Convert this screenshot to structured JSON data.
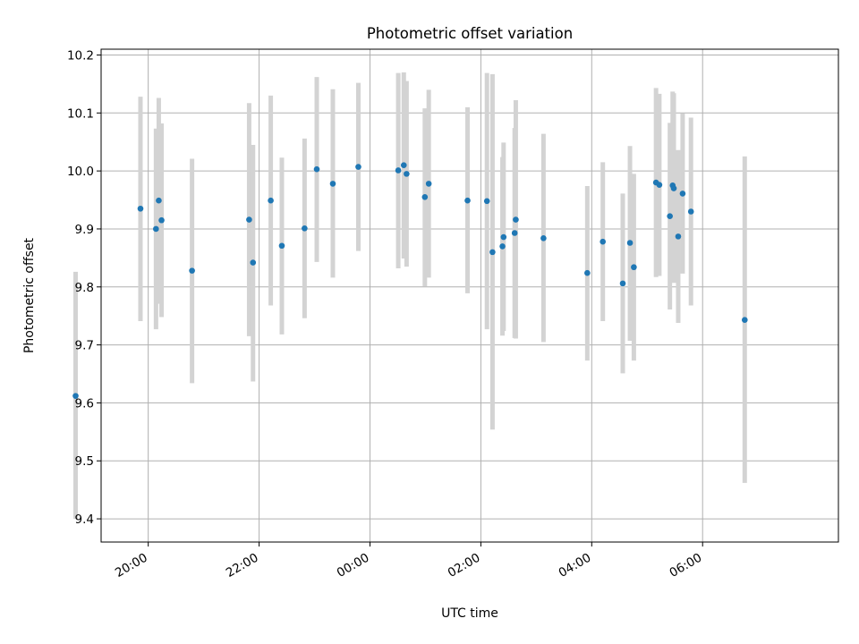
{
  "chart_data": {
    "type": "scatter",
    "title": "Photometric offset variation",
    "xlabel": "UTC time",
    "ylabel": "Photometric offset",
    "x_unit": "hours (UTC, relative to 00:00)",
    "xlim": [
      -2.85,
      10.45
    ],
    "ylim": [
      9.36,
      10.21
    ],
    "x_ticks": [
      {
        "value": -2,
        "label": "20:00"
      },
      {
        "value": 0,
        "label": "22:00"
      },
      {
        "value": 2,
        "label": "00:00"
      },
      {
        "value": 4,
        "label": "02:00"
      },
      {
        "value": 6,
        "label": "04:00"
      },
      {
        "value": 8,
        "label": "06:00"
      }
    ],
    "y_ticks": [
      {
        "value": 9.4,
        "label": "9.4"
      },
      {
        "value": 9.5,
        "label": "9.5"
      },
      {
        "value": 9.6,
        "label": "9.6"
      },
      {
        "value": 9.7,
        "label": "9.7"
      },
      {
        "value": 9.8,
        "label": "9.8"
      },
      {
        "value": 9.9,
        "label": "9.9"
      },
      {
        "value": 10.0,
        "label": "10.0"
      },
      {
        "value": 10.1,
        "label": "10.1"
      },
      {
        "value": 10.2,
        "label": "10.2"
      }
    ],
    "grid": true,
    "colors": {
      "points": "#1f77b4",
      "errorbars": "#d3d3d3",
      "grid": "#b0b0b0"
    },
    "points": [
      {
        "x": -3.31,
        "y": 9.612,
        "yerr": [
          9.4,
          9.826
        ]
      },
      {
        "x": -2.14,
        "y": 9.935,
        "yerr": [
          9.741,
          10.128
        ]
      },
      {
        "x": -1.86,
        "y": 9.9,
        "yerr": [
          9.727,
          10.073
        ]
      },
      {
        "x": -1.81,
        "y": 9.949,
        "yerr": [
          9.771,
          10.126
        ]
      },
      {
        "x": -1.76,
        "y": 9.915,
        "yerr": [
          9.748,
          10.082
        ]
      },
      {
        "x": -1.21,
        "y": 9.828,
        "yerr": [
          9.634,
          10.021
        ]
      },
      {
        "x": -0.18,
        "y": 9.916,
        "yerr": [
          9.715,
          10.117
        ]
      },
      {
        "x": -0.11,
        "y": 9.842,
        "yerr": [
          9.637,
          10.045
        ]
      },
      {
        "x": 0.21,
        "y": 9.949,
        "yerr": [
          9.768,
          10.13
        ]
      },
      {
        "x": 0.41,
        "y": 9.871,
        "yerr": [
          9.718,
          10.023
        ]
      },
      {
        "x": 0.82,
        "y": 9.901,
        "yerr": [
          9.746,
          10.056
        ]
      },
      {
        "x": 1.04,
        "y": 10.003,
        "yerr": [
          9.843,
          10.162
        ]
      },
      {
        "x": 1.33,
        "y": 9.978,
        "yerr": [
          9.816,
          10.141
        ]
      },
      {
        "x": 1.79,
        "y": 10.007,
        "yerr": [
          9.862,
          10.152
        ]
      },
      {
        "x": 2.51,
        "y": 10.001,
        "yerr": [
          9.832,
          10.169
        ]
      },
      {
        "x": 2.61,
        "y": 10.01,
        "yerr": [
          9.849,
          10.17
        ]
      },
      {
        "x": 2.66,
        "y": 9.995,
        "yerr": [
          9.835,
          10.155
        ]
      },
      {
        "x": 2.99,
        "y": 9.955,
        "yerr": [
          9.801,
          10.108
        ]
      },
      {
        "x": 3.06,
        "y": 9.978,
        "yerr": [
          9.816,
          10.14
        ]
      },
      {
        "x": 3.76,
        "y": 9.949,
        "yerr": [
          9.789,
          10.11
        ]
      },
      {
        "x": 4.11,
        "y": 9.948,
        "yerr": [
          9.727,
          10.169
        ]
      },
      {
        "x": 4.21,
        "y": 9.86,
        "yerr": [
          9.554,
          10.167
        ]
      },
      {
        "x": 4.39,
        "y": 9.87,
        "yerr": [
          9.716,
          10.024
        ]
      },
      {
        "x": 4.41,
        "y": 9.886,
        "yerr": [
          9.724,
          10.049
        ]
      },
      {
        "x": 4.61,
        "y": 9.893,
        "yerr": [
          9.712,
          10.074
        ]
      },
      {
        "x": 4.63,
        "y": 9.916,
        "yerr": [
          9.711,
          10.122
        ]
      },
      {
        "x": 5.13,
        "y": 9.884,
        "yerr": [
          9.705,
          10.064
        ]
      },
      {
        "x": 5.92,
        "y": 9.824,
        "yerr": [
          9.673,
          9.974
        ]
      },
      {
        "x": 6.2,
        "y": 9.878,
        "yerr": [
          9.741,
          10.015
        ]
      },
      {
        "x": 6.56,
        "y": 9.806,
        "yerr": [
          9.651,
          9.961
        ]
      },
      {
        "x": 6.69,
        "y": 9.876,
        "yerr": [
          9.707,
          10.043
        ]
      },
      {
        "x": 6.76,
        "y": 9.834,
        "yerr": [
          9.673,
          9.995
        ]
      },
      {
        "x": 7.16,
        "y": 9.98,
        "yerr": [
          9.817,
          10.143
        ]
      },
      {
        "x": 7.22,
        "y": 9.976,
        "yerr": [
          9.819,
          10.133
        ]
      },
      {
        "x": 7.41,
        "y": 9.922,
        "yerr": [
          9.761,
          10.083
        ]
      },
      {
        "x": 7.46,
        "y": 9.975,
        "yerr": [
          9.812,
          10.137
        ]
      },
      {
        "x": 7.48,
        "y": 9.97,
        "yerr": [
          9.807,
          10.134
        ]
      },
      {
        "x": 7.56,
        "y": 9.887,
        "yerr": [
          9.738,
          10.036
        ]
      },
      {
        "x": 7.64,
        "y": 9.961,
        "yerr": [
          9.823,
          10.099
        ]
      },
      {
        "x": 7.79,
        "y": 9.93,
        "yerr": [
          9.768,
          10.092
        ]
      },
      {
        "x": 8.76,
        "y": 9.743,
        "yerr": [
          9.462,
          10.025
        ]
      }
    ]
  }
}
